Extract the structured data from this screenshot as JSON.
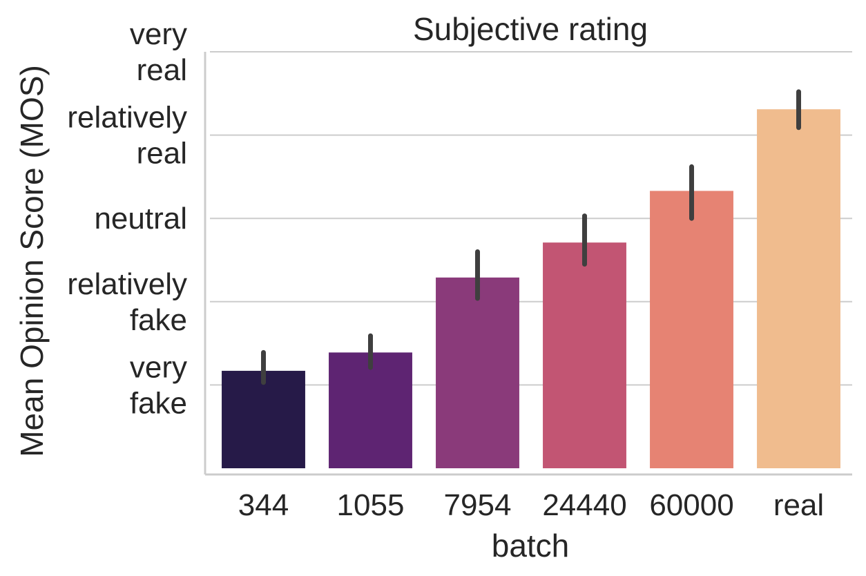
{
  "chart_data": {
    "type": "bar",
    "title": "Subjective rating",
    "xlabel": "batch",
    "ylabel": "Mean Opinion Score (MOS)",
    "categories": [
      "344",
      "1055",
      "7954",
      "24440",
      "60000",
      "real"
    ],
    "values": [
      1.17,
      1.39,
      2.29,
      2.71,
      3.33,
      4.31
    ],
    "error_low": [
      1.03,
      1.21,
      2.04,
      2.45,
      3.0,
      4.09
    ],
    "error_high": [
      1.39,
      1.59,
      2.6,
      3.03,
      3.62,
      4.52
    ],
    "colors": [
      "#261A48",
      "#5E2472",
      "#8A3A7A",
      "#C25573",
      "#E68373",
      "#F0BC8E"
    ],
    "error_color": "#3f3f3f",
    "ylim": [
      0,
      5
    ],
    "yticks": [
      {
        "value": 1,
        "lines": [
          "very",
          "fake"
        ]
      },
      {
        "value": 2,
        "lines": [
          "relatively",
          "fake"
        ]
      },
      {
        "value": 3,
        "lines": [
          "neutral"
        ]
      },
      {
        "value": 4,
        "lines": [
          "relatively",
          "real"
        ]
      },
      {
        "value": 5,
        "lines": [
          "very",
          "real"
        ]
      }
    ],
    "grid": true,
    "grid_axis": "y",
    "legend": "none"
  }
}
